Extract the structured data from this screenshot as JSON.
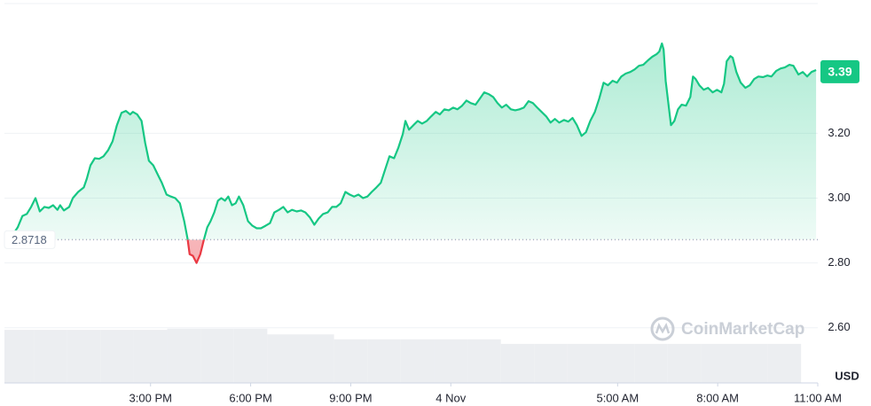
{
  "chart_data": {
    "type": "line",
    "color": "#16c784",
    "below_color": "#ea3943",
    "y_label": "USD",
    "watermark": "CoinMarketCap",
    "baseline": 2.8718,
    "current_price": 3.39,
    "xlim": [
      -13.38,
      11.0
    ],
    "xticks": [
      {
        "value": -9,
        "label": "3:00 PM"
      },
      {
        "value": -6,
        "label": "6:00 PM"
      },
      {
        "value": -3,
        "label": "9:00 PM"
      },
      {
        "value": 0,
        "label": "4 Nov"
      },
      {
        "value": 5,
        "label": "5:00 AM"
      },
      {
        "value": 8,
        "label": "8:00 AM"
      },
      {
        "value": 11,
        "label": "11:00 AM"
      }
    ],
    "ylim": [
      2.43,
      3.6
    ],
    "yticks": [
      {
        "value": 2.6,
        "label": "2.60"
      },
      {
        "value": 2.8,
        "label": "2.80"
      },
      {
        "value": 3.0,
        "label": "3.00"
      },
      {
        "value": 3.2,
        "label": "3.20"
      }
    ],
    "grid": true,
    "x": [
      -13.11,
      -12.98,
      -12.84,
      -12.71,
      -12.58,
      -12.45,
      -12.32,
      -12.18,
      -12.05,
      -11.92,
      -11.79,
      -11.71,
      -11.6,
      -11.44,
      -11.33,
      -11.17,
      -11.0,
      -10.91,
      -10.8,
      -10.67,
      -10.54,
      -10.41,
      -10.27,
      -10.14,
      -10.01,
      -9.87,
      -9.74,
      -9.61,
      -9.53,
      -9.4,
      -9.27,
      -9.16,
      -9.05,
      -8.92,
      -8.79,
      -8.66,
      -8.52,
      -8.39,
      -8.26,
      -8.12,
      -7.99,
      -7.89,
      -7.83,
      -7.73,
      -7.62,
      -7.51,
      -7.41,
      -7.3,
      -7.2,
      -7.09,
      -6.98,
      -6.88,
      -6.77,
      -6.67,
      -6.56,
      -6.45,
      -6.35,
      -6.22,
      -6.08,
      -5.95,
      -5.82,
      -5.69,
      -5.55,
      -5.42,
      -5.29,
      -5.15,
      -5.02,
      -4.89,
      -4.76,
      -4.62,
      -4.49,
      -4.36,
      -4.22,
      -4.09,
      -3.96,
      -3.83,
      -3.69,
      -3.56,
      -3.43,
      -3.3,
      -3.16,
      -3.03,
      -2.9,
      -2.77,
      -2.63,
      -2.5,
      -2.37,
      -2.23,
      -2.1,
      -1.97,
      -1.84,
      -1.7,
      -1.57,
      -1.44,
      -1.36,
      -1.25,
      -1.12,
      -0.99,
      -0.86,
      -0.72,
      -0.59,
      -0.45,
      -0.33,
      -0.19,
      -0.06,
      0.07,
      0.2,
      0.34,
      0.47,
      0.6,
      0.74,
      0.87,
      1.0,
      1.13,
      1.27,
      1.4,
      1.53,
      1.66,
      1.8,
      1.93,
      2.06,
      2.19,
      2.33,
      2.46,
      2.59,
      2.72,
      2.86,
      2.99,
      3.12,
      3.25,
      3.39,
      3.52,
      3.65,
      3.78,
      3.92,
      4.05,
      4.18,
      4.32,
      4.45,
      4.58,
      4.71,
      4.85,
      4.98,
      5.11,
      5.24,
      5.38,
      5.51,
      5.64,
      5.77,
      5.91,
      6.04,
      6.17,
      6.25,
      6.33,
      6.38,
      6.44,
      6.52,
      6.6,
      6.7,
      6.81,
      6.92,
      7.05,
      7.18,
      7.26,
      7.34,
      7.45,
      7.58,
      7.71,
      7.85,
      7.98,
      8.11,
      8.19,
      8.27,
      8.38,
      8.45,
      8.56,
      8.69,
      8.83,
      8.96,
      9.09,
      9.22,
      9.36,
      9.49,
      9.61,
      9.75,
      9.89,
      10.01,
      10.15,
      10.27,
      10.42,
      10.55,
      10.68,
      10.81,
      10.95
    ],
    "values": [
      2.89,
      2.91,
      2.945,
      2.951,
      2.973,
      3.0,
      2.959,
      2.973,
      2.97,
      2.978,
      2.964,
      2.978,
      2.962,
      2.973,
      3.0,
      3.019,
      3.033,
      3.06,
      3.101,
      3.123,
      3.121,
      3.129,
      3.148,
      3.175,
      3.225,
      3.263,
      3.269,
      3.258,
      3.266,
      3.258,
      3.238,
      3.17,
      3.115,
      3.101,
      3.074,
      3.047,
      3.011,
      3.005,
      3.0,
      2.984,
      2.929,
      2.874,
      2.827,
      2.822,
      2.8,
      2.827,
      2.868,
      2.91,
      2.929,
      2.956,
      2.992,
      3.0,
      2.992,
      3.005,
      2.978,
      2.984,
      3.005,
      2.978,
      2.929,
      2.915,
      2.907,
      2.907,
      2.915,
      2.923,
      2.956,
      2.964,
      2.973,
      2.956,
      2.964,
      2.959,
      2.962,
      2.956,
      2.94,
      2.918,
      2.937,
      2.951,
      2.956,
      2.973,
      2.973,
      2.984,
      3.019,
      3.011,
      3.005,
      3.011,
      3.0,
      3.005,
      3.019,
      3.033,
      3.047,
      3.088,
      3.129,
      3.123,
      3.156,
      3.197,
      3.238,
      3.211,
      3.225,
      3.238,
      3.23,
      3.238,
      3.252,
      3.266,
      3.258,
      3.274,
      3.271,
      3.279,
      3.274,
      3.285,
      3.301,
      3.293,
      3.288,
      3.307,
      3.326,
      3.321,
      3.312,
      3.293,
      3.279,
      3.288,
      3.274,
      3.271,
      3.274,
      3.279,
      3.299,
      3.293,
      3.279,
      3.266,
      3.252,
      3.233,
      3.244,
      3.233,
      3.241,
      3.236,
      3.247,
      3.225,
      3.192,
      3.203,
      3.238,
      3.266,
      3.307,
      3.356,
      3.348,
      3.362,
      3.356,
      3.375,
      3.384,
      3.389,
      3.397,
      3.408,
      3.411,
      3.425,
      3.436,
      3.444,
      3.452,
      3.477,
      3.458,
      3.362,
      3.293,
      3.225,
      3.238,
      3.274,
      3.288,
      3.285,
      3.312,
      3.375,
      3.367,
      3.348,
      3.334,
      3.34,
      3.326,
      3.334,
      3.326,
      3.353,
      3.422,
      3.438,
      3.433,
      3.389,
      3.356,
      3.34,
      3.348,
      3.367,
      3.375,
      3.373,
      3.378,
      3.375,
      3.392,
      3.4,
      3.403,
      3.411,
      3.408,
      3.381,
      3.389,
      3.375,
      3.389,
      3.395
    ],
    "volume_color": "#eceef1",
    "y2lim": [
      0,
      100
    ],
    "volume_x": [
      -13,
      -12,
      -11,
      -10,
      -9,
      -8,
      -7,
      -6,
      -5,
      -4,
      -3,
      -2,
      -1,
      0,
      1,
      2,
      3,
      4,
      5,
      6,
      7,
      8,
      9,
      10
    ],
    "volume_values": [
      14.0,
      14.0,
      14.0,
      14.0,
      14.0,
      14.3,
      14.3,
      14.3,
      12.8,
      12.8,
      11.5,
      11.5,
      11.5,
      11.5,
      11.5,
      10.3,
      10.3,
      10.3,
      10.3,
      10.3,
      10.3,
      10.3,
      10.3,
      10.3
    ]
  }
}
